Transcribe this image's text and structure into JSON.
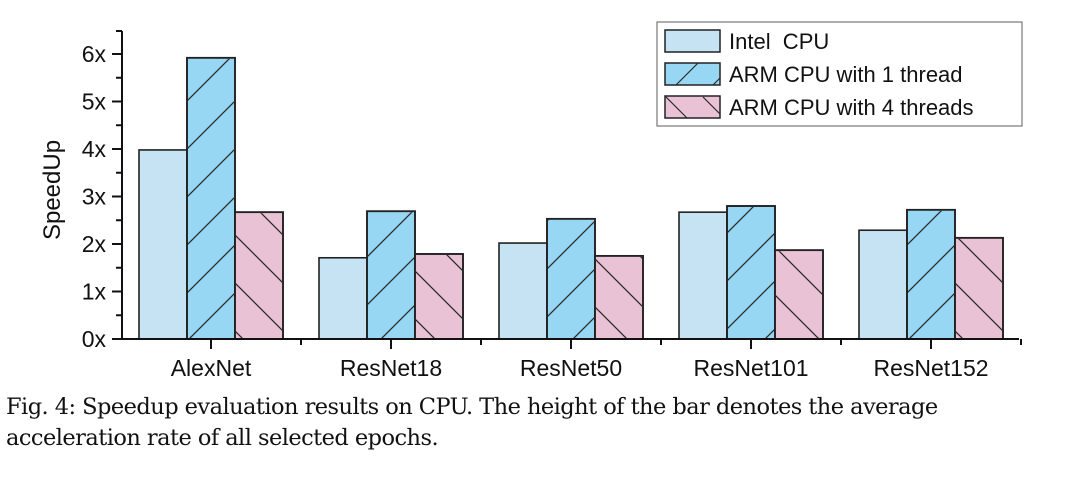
{
  "chart_data": {
    "type": "bar",
    "title": "",
    "xlabel": "",
    "ylabel": "SpeedUp",
    "ylim": [
      0,
      6.3
    ],
    "yticks": [
      0,
      1,
      2,
      3,
      4,
      5,
      6
    ],
    "ytick_labels": [
      "0x",
      "1x",
      "2x",
      "3x",
      "4x",
      "5x",
      "6x"
    ],
    "grid": false,
    "legend_position": "top-right",
    "categories": [
      "AlexNet",
      "ResNet18",
      "ResNet50",
      "ResNet101",
      "ResNet152"
    ],
    "series": [
      {
        "name": "Intel  CPU",
        "values": [
          3.98,
          1.71,
          2.02,
          2.67,
          2.29
        ],
        "color": "#c6e3f4",
        "hatch": "none"
      },
      {
        "name": "ARM CPU with 1 thread",
        "values": [
          5.92,
          2.69,
          2.53,
          2.8,
          2.72
        ],
        "color": "#97d7f3",
        "hatch": "forward"
      },
      {
        "name": "ARM CPU with 4 threads",
        "values": [
          2.67,
          1.79,
          1.75,
          1.87,
          2.13
        ],
        "color": "#e9c3d5",
        "hatch": "backward"
      }
    ]
  },
  "caption": {
    "label": "Fig. 4:",
    "text": "Speedup evaluation results on CPU. The height of the bar denotes the average acceleration rate of all selected epochs."
  }
}
